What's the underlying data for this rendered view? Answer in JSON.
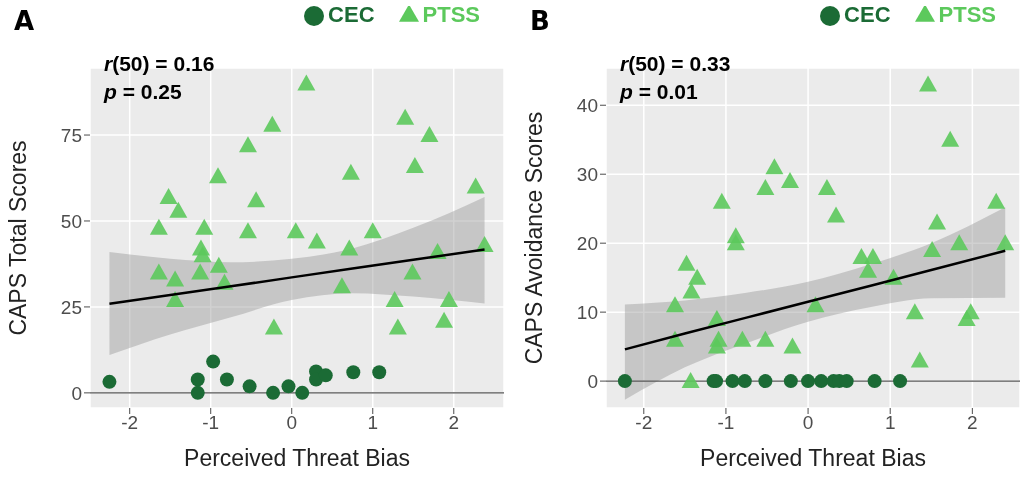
{
  "chart_data": [
    {
      "type": "scatter",
      "title": "A",
      "xlabel": "Perceived Threat Bias",
      "ylabel": "CAPS Total Scores",
      "xlim": [
        -2.49,
        2.62
      ],
      "xticks": [
        -2,
        -1,
        0,
        1,
        2
      ],
      "ylim": [
        -4.4,
        94.5
      ],
      "yticks": [
        0,
        25,
        50,
        75
      ],
      "grid": true,
      "legend": "top right",
      "annotations": [
        "r(50) = 0.16",
        "p = 0.25"
      ],
      "ref_lines": [
        {
          "axis": "y",
          "value": 0,
          "color": "#555555"
        }
      ],
      "series": [
        {
          "name": "CEC",
          "color": "#1b6b35",
          "marker": "circle",
          "x": [
            -2.25,
            -1.16,
            -1.16,
            -0.97,
            -0.8,
            -0.52,
            -0.23,
            -0.04,
            0.13,
            0.3,
            0.3,
            0.42,
            0.76,
            1.08
          ],
          "values": [
            3.2,
            3.9,
            0,
            9.1,
            3.9,
            1.9,
            0,
            1.9,
            0,
            6.2,
            3.9,
            5.1,
            6,
            6
          ]
        },
        {
          "name": "PTSS",
          "color": "#5cc95c",
          "marker": "triangle",
          "x": [
            0.18,
            -0.24,
            1.4,
            1.7,
            -0.54,
            -0.91,
            0.73,
            1.52,
            2.27,
            -1.52,
            -1.4,
            -0.44,
            -1.64,
            -1.08,
            -0.54,
            0.05,
            1.0,
            0.31,
            2.38,
            -1.12,
            -1.1,
            0.71,
            1.8,
            -0.9,
            -1.64,
            -1.13,
            1.49,
            -1.44,
            -0.83,
            0.62,
            -1.44,
            1.27,
            1.94,
            -0.22,
            1.31,
            1.88
          ],
          "values": [
            90,
            78,
            80,
            75,
            72,
            63,
            64,
            66,
            60,
            57,
            53,
            56,
            48,
            48,
            47,
            47,
            47,
            44,
            43,
            42,
            40,
            42,
            41,
            37,
            35,
            35,
            35,
            33,
            32,
            31,
            27,
            27,
            27,
            19,
            19,
            21
          ]
        },
        {
          "type": "line",
          "color": "#000000",
          "marker": "none",
          "x": [
            -2.25,
            -1.5,
            -0.75,
            0,
            0.75,
            1.5,
            2.38
          ],
          "values": [
            25.9,
            28.5,
            31,
            33.6,
            36.2,
            38.7,
            41.7
          ],
          "lower": [
            11,
            17,
            22,
            27,
            29,
            28,
            26
          ],
          "upper": [
            41,
            39,
            38,
            39,
            42,
            48,
            57
          ]
        }
      ]
    },
    {
      "type": "scatter",
      "title": "B",
      "xlabel": "Perceived Threat Bias",
      "ylabel": "CAPS Avoidance Scores",
      "xlim": [
        -2.46,
        2.58
      ],
      "xticks": [
        -2,
        -1,
        0,
        1,
        2
      ],
      "ylim": [
        -3.9,
        45.4
      ],
      "yticks": [
        0,
        10,
        20,
        30,
        40
      ],
      "grid": true,
      "legend": "top right",
      "annotations": [
        "r(50) = 0.33",
        "p = 0.01"
      ],
      "ref_lines": [
        {
          "axis": "y",
          "value": 0,
          "color": "#555555"
        }
      ],
      "series": [
        {
          "name": "CEC",
          "color": "#1b6b35",
          "marker": "circle",
          "x": [
            -2.23,
            -1.15,
            -1.12,
            -0.92,
            -0.77,
            -0.52,
            -0.21,
            0,
            0.16,
            0.31,
            0.38,
            0.47,
            0.81,
            1.12
          ],
          "values": [
            0,
            0,
            0,
            0,
            0,
            0,
            0,
            0,
            0,
            0,
            0,
            0,
            0,
            0
          ]
        },
        {
          "name": "PTSS",
          "color": "#5cc95c",
          "marker": "triangle",
          "x": [
            1.46,
            1.73,
            -0.41,
            -0.22,
            -0.52,
            0.23,
            -1.05,
            2.29,
            0.34,
            1.57,
            -0.88,
            -0.88,
            1.84,
            2.4,
            1.51,
            0.65,
            0.79,
            0.73,
            -1.48,
            -1.35,
            1.04,
            -1.42,
            -1.62,
            0.09,
            1.3,
            1.98,
            1.93,
            -1.11,
            -1.62,
            -1.09,
            -0.8,
            -0.52,
            -1.11,
            -0.19,
            1.36,
            -1.43
          ],
          "values": [
            43,
            35,
            31,
            29,
            28,
            28,
            26,
            26,
            24,
            23,
            21,
            20,
            20,
            20,
            19,
            18,
            18,
            16,
            17,
            15,
            15,
            13,
            11,
            11,
            10,
            10,
            9,
            9,
            6,
            6,
            6,
            6,
            5,
            5,
            3,
            0
          ]
        },
        {
          "type": "line",
          "color": "#000000",
          "marker": "none",
          "x": [
            -2.23,
            -1.5,
            -0.75,
            0,
            0.75,
            1.5,
            2.4
          ],
          "values": [
            4.6,
            6.9,
            9.2,
            11.5,
            13.8,
            16.1,
            18.9
          ],
          "lower": [
            -2.7,
            2,
            5.5,
            8.6,
            10.7,
            12,
            12.1
          ],
          "upper": [
            11.1,
            11.7,
            12.8,
            14.4,
            16.9,
            20,
            25.2
          ]
        }
      ]
    }
  ]
}
